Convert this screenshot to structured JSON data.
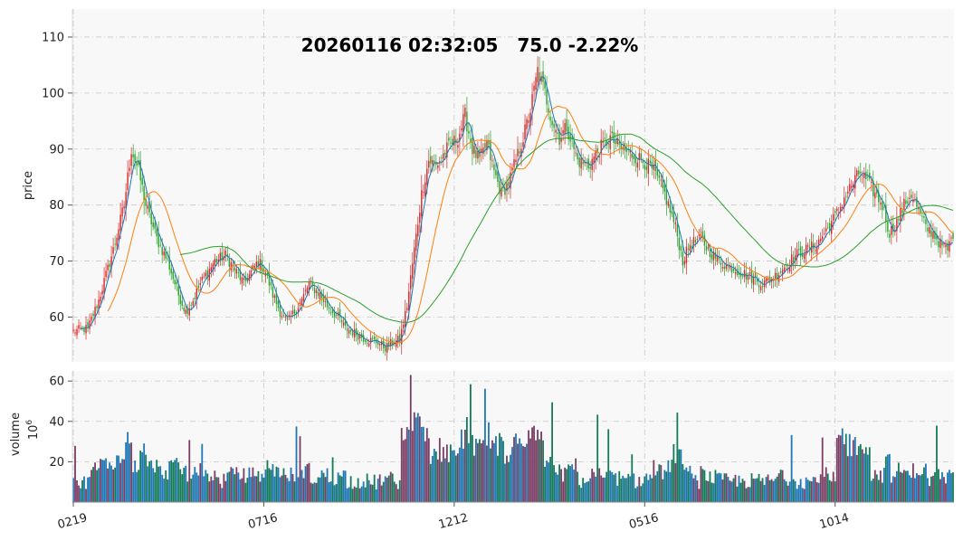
{
  "chart_data": {
    "type": "candlestick",
    "title": "20260116 02:32:05   75.0 -2.22%",
    "price_axis": {
      "label": "price",
      "ylim": [
        52,
        115
      ],
      "ticks": [
        60,
        70,
        80,
        90,
        100,
        110
      ],
      "grid": true
    },
    "volume_axis": {
      "label": "volume",
      "unit_label": "10",
      "unit_exp": "6",
      "ylim": [
        0,
        65
      ],
      "ticks": [
        20,
        40,
        60
      ],
      "grid": true
    },
    "x_ticks": [
      {
        "label": "0219",
        "index": 0
      },
      {
        "label": "0716",
        "index": 105
      },
      {
        "label": "1212",
        "index": 210
      },
      {
        "label": "0516",
        "index": 315
      },
      {
        "label": "1014",
        "index": 420
      }
    ],
    "n_bars": 486,
    "close_anchors": [
      [
        0,
        57.5
      ],
      [
        8,
        58
      ],
      [
        14,
        63
      ],
      [
        22,
        72
      ],
      [
        28,
        80
      ],
      [
        32,
        90
      ],
      [
        36,
        86
      ],
      [
        40,
        80
      ],
      [
        46,
        74
      ],
      [
        52,
        70
      ],
      [
        58,
        64
      ],
      [
        62,
        61
      ],
      [
        66,
        63
      ],
      [
        70,
        66
      ],
      [
        74,
        68
      ],
      [
        78,
        70
      ],
      [
        84,
        71
      ],
      [
        90,
        68
      ],
      [
        94,
        66
      ],
      [
        98,
        68
      ],
      [
        102,
        70
      ],
      [
        106,
        68
      ],
      [
        110,
        64
      ],
      [
        114,
        61
      ],
      [
        118,
        59
      ],
      [
        122,
        61
      ],
      [
        126,
        63
      ],
      [
        130,
        66
      ],
      [
        136,
        64
      ],
      [
        140,
        62
      ],
      [
        146,
        60
      ],
      [
        150,
        58
      ],
      [
        156,
        57
      ],
      [
        162,
        56
      ],
      [
        168,
        55.5
      ],
      [
        172,
        54.5
      ],
      [
        176,
        55.5
      ],
      [
        180,
        56
      ],
      [
        184,
        62
      ],
      [
        188,
        72
      ],
      [
        192,
        82
      ],
      [
        196,
        88
      ],
      [
        200,
        87
      ],
      [
        206,
        90
      ],
      [
        212,
        92
      ],
      [
        216,
        96
      ],
      [
        220,
        90
      ],
      [
        224,
        88
      ],
      [
        228,
        91
      ],
      [
        232,
        86
      ],
      [
        236,
        82
      ],
      [
        240,
        84
      ],
      [
        244,
        88
      ],
      [
        248,
        92
      ],
      [
        252,
        97
      ],
      [
        256,
        104
      ],
      [
        260,
        100
      ],
      [
        264,
        95
      ],
      [
        268,
        92
      ],
      [
        272,
        94
      ],
      [
        278,
        88
      ],
      [
        284,
        87
      ],
      [
        290,
        90
      ],
      [
        296,
        92
      ],
      [
        302,
        90
      ],
      [
        308,
        89
      ],
      [
        314,
        88
      ],
      [
        320,
        86
      ],
      [
        326,
        82
      ],
      [
        332,
        76
      ],
      [
        336,
        70
      ],
      [
        340,
        73
      ],
      [
        346,
        74
      ],
      [
        350,
        72
      ],
      [
        356,
        70
      ],
      [
        362,
        69
      ],
      [
        368,
        68
      ],
      [
        374,
        67
      ],
      [
        380,
        66
      ],
      [
        386,
        67
      ],
      [
        392,
        69
      ],
      [
        398,
        71
      ],
      [
        404,
        72
      ],
      [
        410,
        73
      ],
      [
        416,
        76
      ],
      [
        422,
        79
      ],
      [
        426,
        82
      ],
      [
        430,
        84
      ],
      [
        434,
        86
      ],
      [
        438,
        84
      ],
      [
        442,
        82
      ],
      [
        446,
        80
      ],
      [
        450,
        75
      ],
      [
        454,
        77
      ],
      [
        458,
        80
      ],
      [
        462,
        82
      ],
      [
        466,
        79
      ],
      [
        470,
        76
      ],
      [
        474,
        75
      ],
      [
        478,
        73
      ],
      [
        482,
        72
      ],
      [
        485,
        75
      ]
    ],
    "moving_averages": [
      {
        "period": 5,
        "color": "#1f77b4"
      },
      {
        "period": 20,
        "color": "#ff7f0e"
      },
      {
        "period": 60,
        "color": "#2ca02c"
      }
    ],
    "colors": {
      "up": "#d62728",
      "down": "#2ca02c",
      "volume_up": "#7a3d64",
      "volume_down": "#137a5a",
      "volume_neutral": "#1f77b4",
      "panel_bg": "#f8f8f8",
      "grid": "#c8c8c8"
    }
  }
}
